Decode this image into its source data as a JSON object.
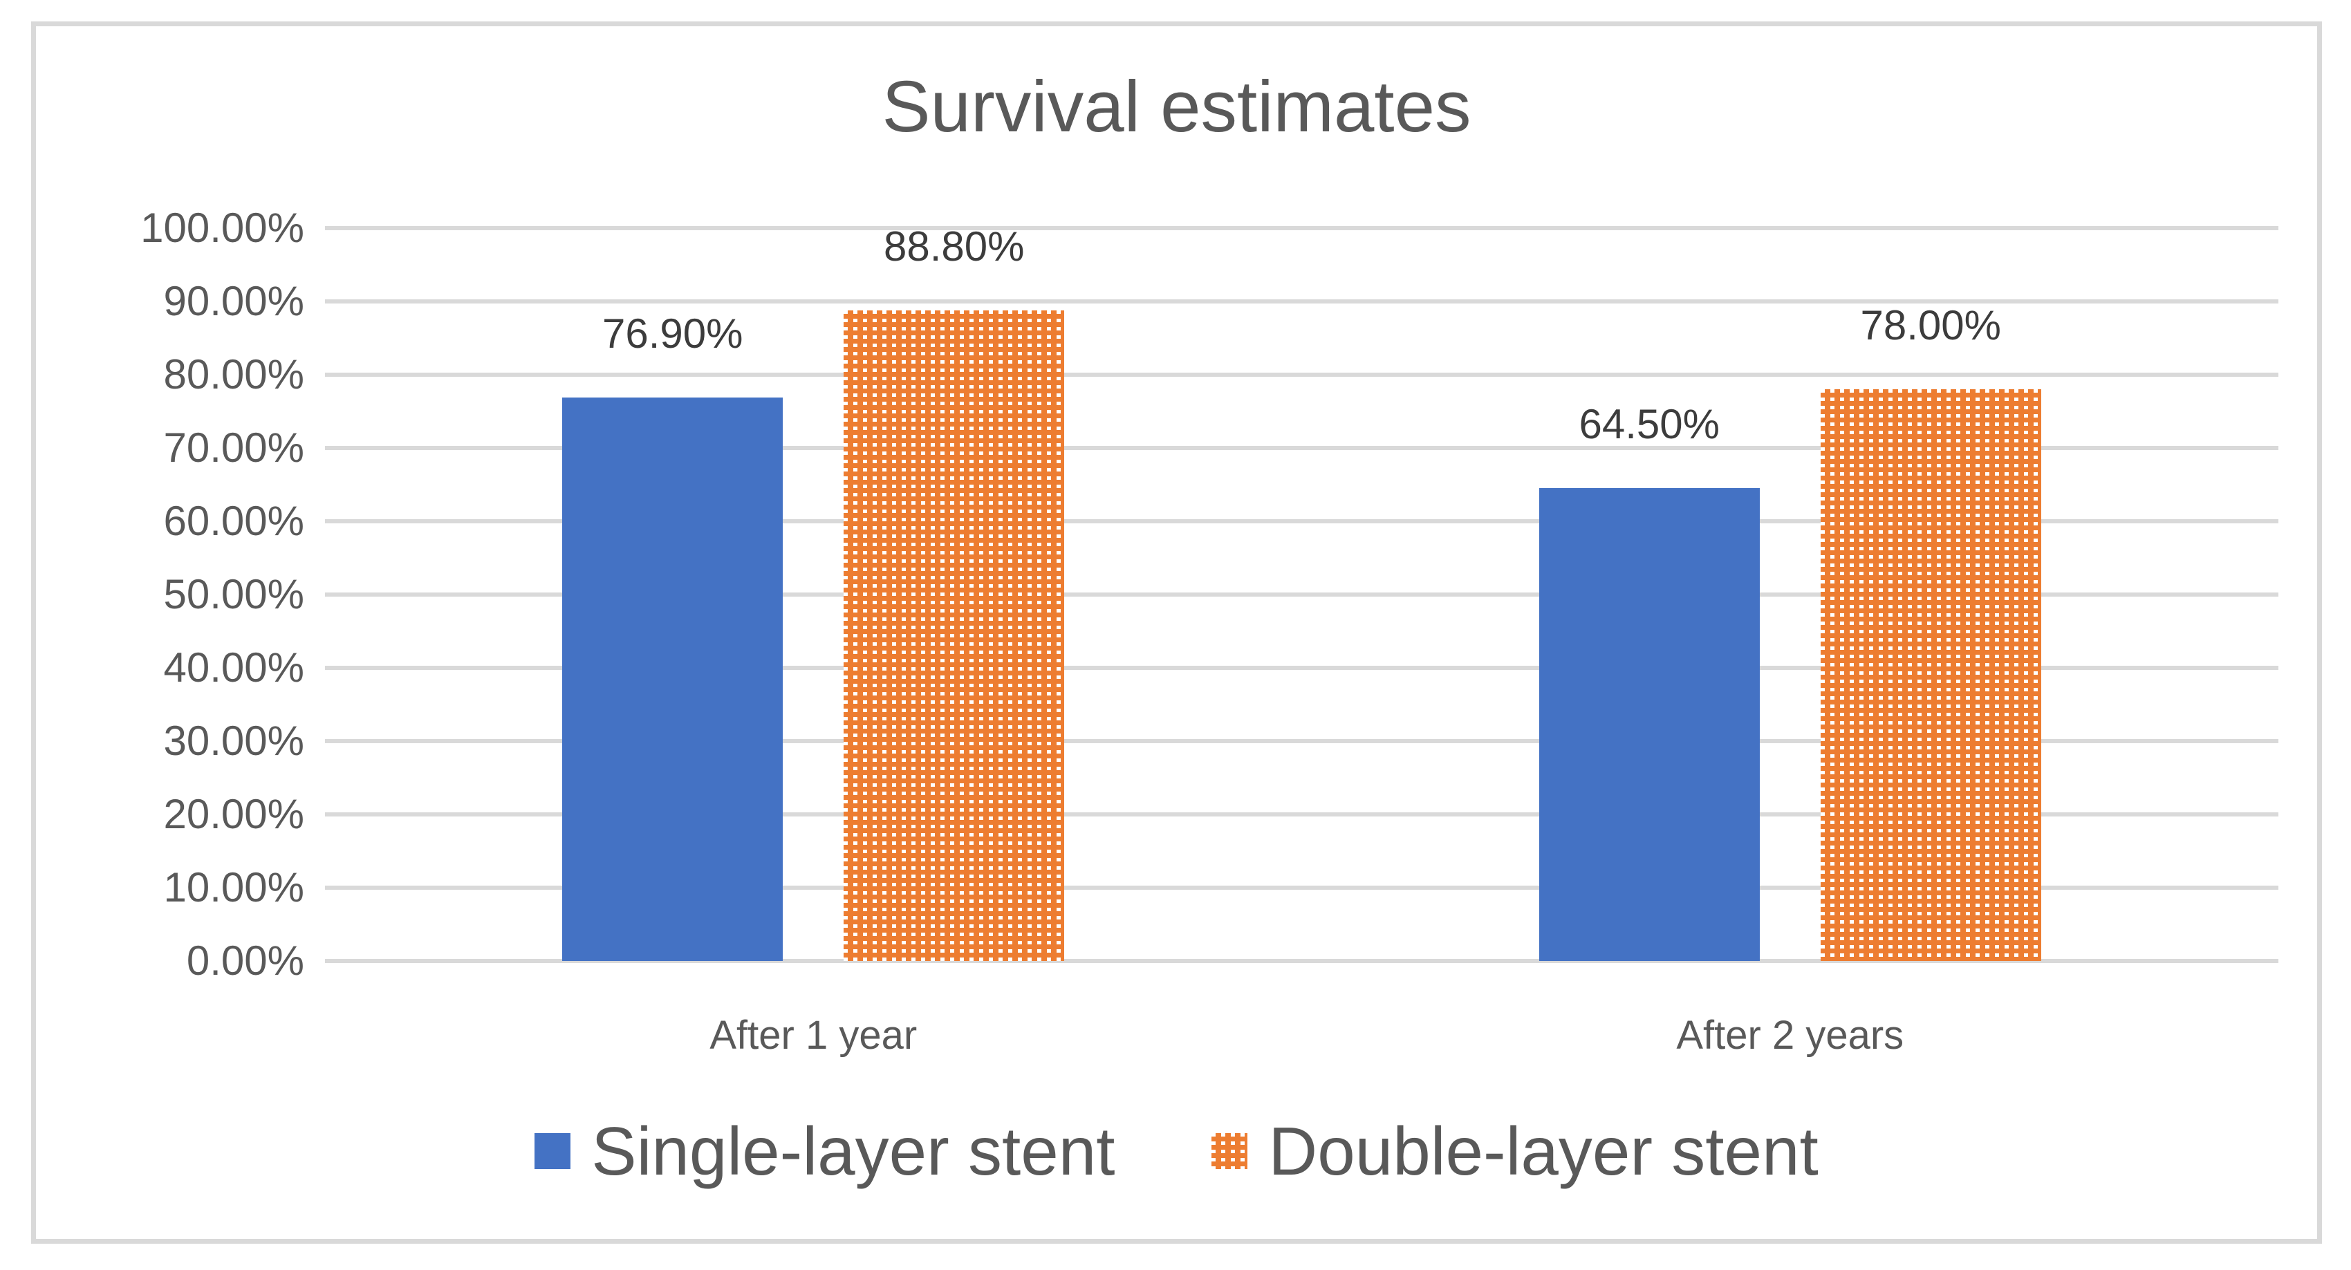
{
  "chart_data": {
    "type": "bar",
    "title": "Survival estimates",
    "categories": [
      "After 1 year",
      "After 2 years"
    ],
    "series": [
      {
        "name": "Single-layer stent",
        "values": [
          76.9,
          64.5
        ],
        "data_labels": [
          "76.90%",
          "64.50%"
        ],
        "color": "#4472C4",
        "fill_style": "solid"
      },
      {
        "name": "Double-layer stent",
        "values": [
          88.8,
          78.0
        ],
        "data_labels": [
          "88.80%",
          "78.00%"
        ],
        "color": "#ED7D31",
        "fill_style": "dotted-grid-pattern"
      }
    ],
    "y_axis": {
      "min": 0,
      "max": 100,
      "step": 10,
      "tick_labels": [
        "0.00%",
        "10.00%",
        "20.00%",
        "30.00%",
        "40.00%",
        "50.00%",
        "60.00%",
        "70.00%",
        "80.00%",
        "90.00%",
        "100.00%"
      ]
    },
    "grid": true,
    "legend_position": "bottom",
    "colors": {
      "title_text": "#595959",
      "axis_text": "#595959",
      "data_label_text": "#3C3C3C",
      "gridline": "#D9D9D9",
      "frame_border": "#D9D9D9",
      "background": "#FFFFFF"
    }
  }
}
